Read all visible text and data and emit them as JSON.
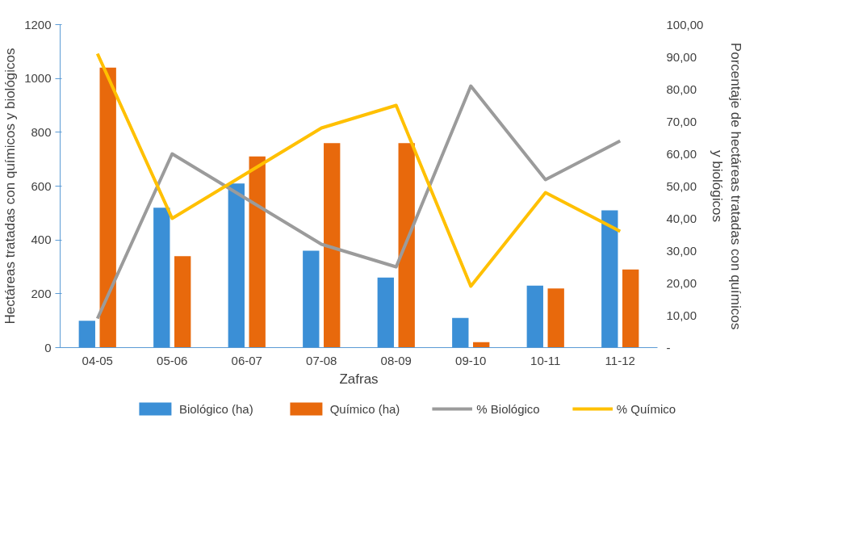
{
  "chart_data": {
    "type": "bar",
    "xlabel": "Zafras",
    "ylabel": "Hectáreas tratadas con químicos y biológicos",
    "y2label": "Porcentaje de hectáreas tratadas con químicos y biológicos",
    "categories": [
      "04-05",
      "05-06",
      "06-07",
      "07-08",
      "08-09",
      "09-10",
      "10-11",
      "11-12"
    ],
    "series": [
      {
        "name": "Biológico (ha)",
        "color": "#3b8fd6",
        "values": [
          100,
          520,
          610,
          360,
          260,
          110,
          230,
          510
        ]
      },
      {
        "name": "Químico (ha)",
        "color": "#e8690c",
        "values": [
          1040,
          340,
          710,
          760,
          760,
          20,
          220,
          290
        ]
      },
      {
        "name": "% Biológico",
        "type": "line",
        "axis": "y2",
        "color": "#9b9b9b",
        "values": [
          9,
          60,
          46,
          32,
          25,
          81,
          52,
          64
        ]
      },
      {
        "name": "% Químico",
        "type": "line",
        "axis": "y2",
        "color": "#ffc000",
        "values": [
          91,
          40,
          54,
          68,
          75,
          19,
          48,
          36
        ]
      }
    ],
    "ylim": [
      0,
      1200
    ],
    "yticks": [
      0,
      200,
      400,
      600,
      800,
      1000,
      1200
    ],
    "y2lim": [
      0,
      100
    ],
    "y2ticks": [
      {
        "value": 0,
        "label": "-"
      },
      {
        "value": 10,
        "label": "10,00"
      },
      {
        "value": 20,
        "label": "20,00"
      },
      {
        "value": 30,
        "label": "30,00"
      },
      {
        "value": 40,
        "label": "40,00"
      },
      {
        "value": 50,
        "label": "50,00"
      },
      {
        "value": 60,
        "label": "60,00"
      },
      {
        "value": 70,
        "label": "70,00"
      },
      {
        "value": 80,
        "label": "80,00"
      },
      {
        "value": 90,
        "label": "90,00"
      },
      {
        "value": 100,
        "label": "100,00"
      }
    ],
    "grid": false,
    "legend": "bottom",
    "marker": "none",
    "line_style": "solid"
  }
}
